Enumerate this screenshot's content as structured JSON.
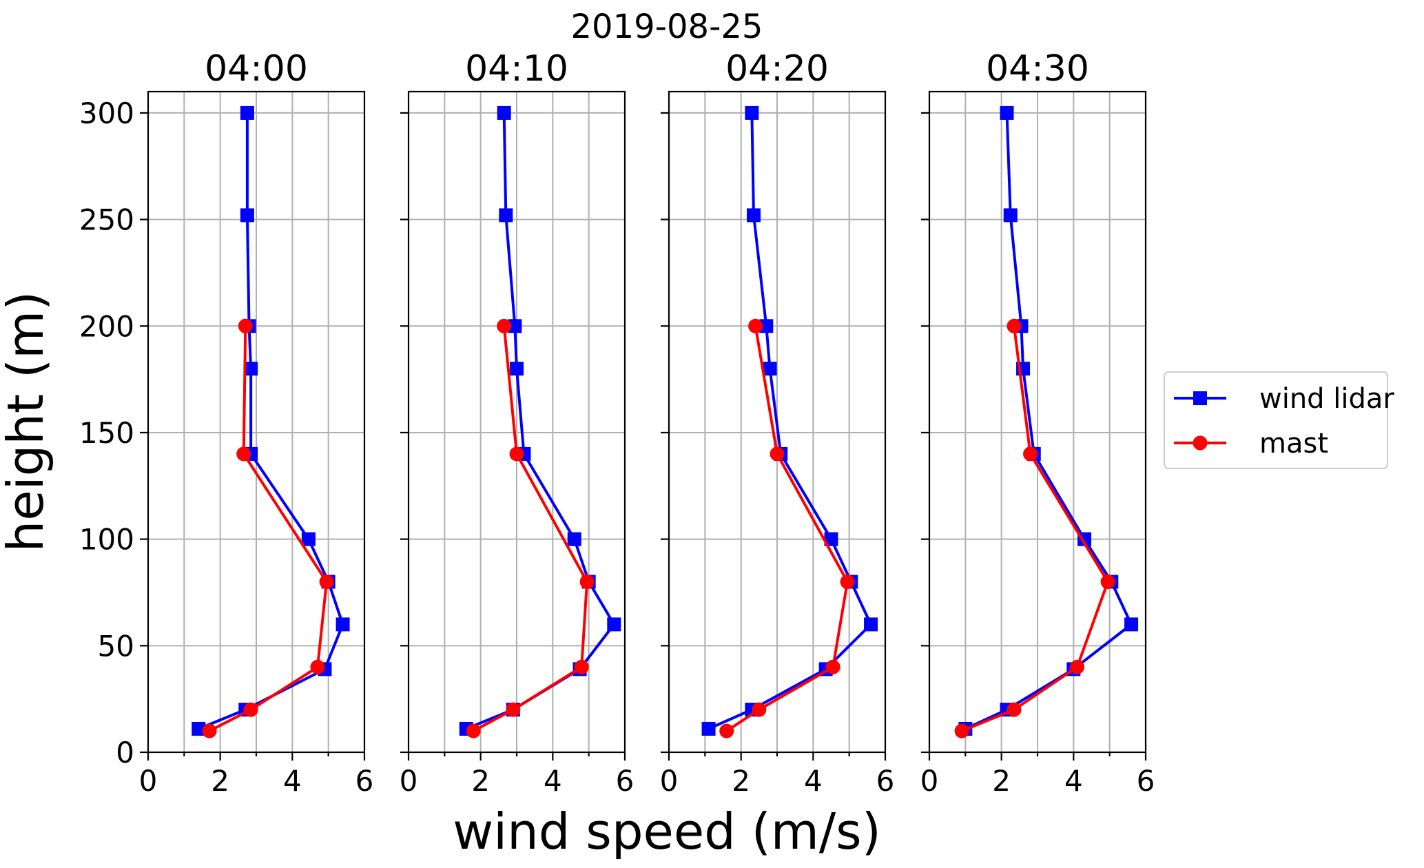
{
  "chart_data": {
    "type": "line",
    "title": "2019-08-25",
    "xlabel": "wind speed (m/s)",
    "ylabel": "height (m)",
    "xlim": [
      0,
      6
    ],
    "ylim": [
      0,
      310
    ],
    "xticks": [
      0,
      2,
      4,
      6
    ],
    "yticks": [
      0,
      50,
      100,
      150,
      200,
      250,
      300
    ],
    "grid": true,
    "legend_position": "right",
    "legend": [
      {
        "name": "wind lidar",
        "color": "#0000ff",
        "marker": "square"
      },
      {
        "name": "mast",
        "color": "#ff0000",
        "marker": "circle"
      }
    ],
    "panels": [
      {
        "title": "04:00",
        "series": [
          {
            "name": "wind lidar",
            "x": [
              1.4,
              2.7,
              4.9,
              5.4,
              5.0,
              4.45,
              2.85,
              2.85,
              2.8,
              2.75,
              2.75
            ],
            "y": [
              11,
              20,
              39,
              60,
              80,
              100,
              140,
              180,
              200,
              252,
              300
            ]
          },
          {
            "name": "mast",
            "x": [
              1.7,
              2.85,
              4.7,
              4.95,
              2.65,
              2.7
            ],
            "y": [
              10,
              20,
              40,
              80,
              140,
              200
            ]
          }
        ]
      },
      {
        "title": "04:10",
        "series": [
          {
            "name": "wind lidar",
            "x": [
              1.6,
              2.9,
              4.75,
              5.7,
              5.0,
              4.6,
              3.2,
              3.0,
              2.95,
              2.7,
              2.65
            ],
            "y": [
              11,
              20,
              39,
              60,
              80,
              100,
              140,
              180,
              200,
              252,
              300
            ]
          },
          {
            "name": "mast",
            "x": [
              1.8,
              2.9,
              4.8,
              4.95,
              3.0,
              2.65
            ],
            "y": [
              10,
              20,
              40,
              80,
              140,
              200
            ]
          }
        ]
      },
      {
        "title": "04:20",
        "series": [
          {
            "name": "wind lidar",
            "x": [
              1.1,
              2.3,
              4.35,
              5.6,
              5.05,
              4.5,
              3.1,
              2.8,
              2.7,
              2.35,
              2.3
            ],
            "y": [
              11,
              20,
              39,
              60,
              80,
              100,
              140,
              180,
              200,
              252,
              300
            ]
          },
          {
            "name": "mast",
            "x": [
              1.6,
              2.5,
              4.55,
              4.95,
              3.0,
              2.4
            ],
            "y": [
              10,
              20,
              40,
              80,
              140,
              200
            ]
          }
        ]
      },
      {
        "title": "04:30",
        "series": [
          {
            "name": "wind lidar",
            "x": [
              1.0,
              2.15,
              4.0,
              5.6,
              5.05,
              4.3,
              2.9,
              2.6,
              2.55,
              2.25,
              2.15
            ],
            "y": [
              11,
              20,
              39,
              60,
              80,
              100,
              140,
              180,
              200,
              252,
              300
            ]
          },
          {
            "name": "mast",
            "x": [
              0.9,
              2.35,
              4.1,
              4.95,
              2.8,
              2.35
            ],
            "y": [
              10,
              20,
              40,
              80,
              140,
              200
            ]
          }
        ]
      }
    ]
  }
}
